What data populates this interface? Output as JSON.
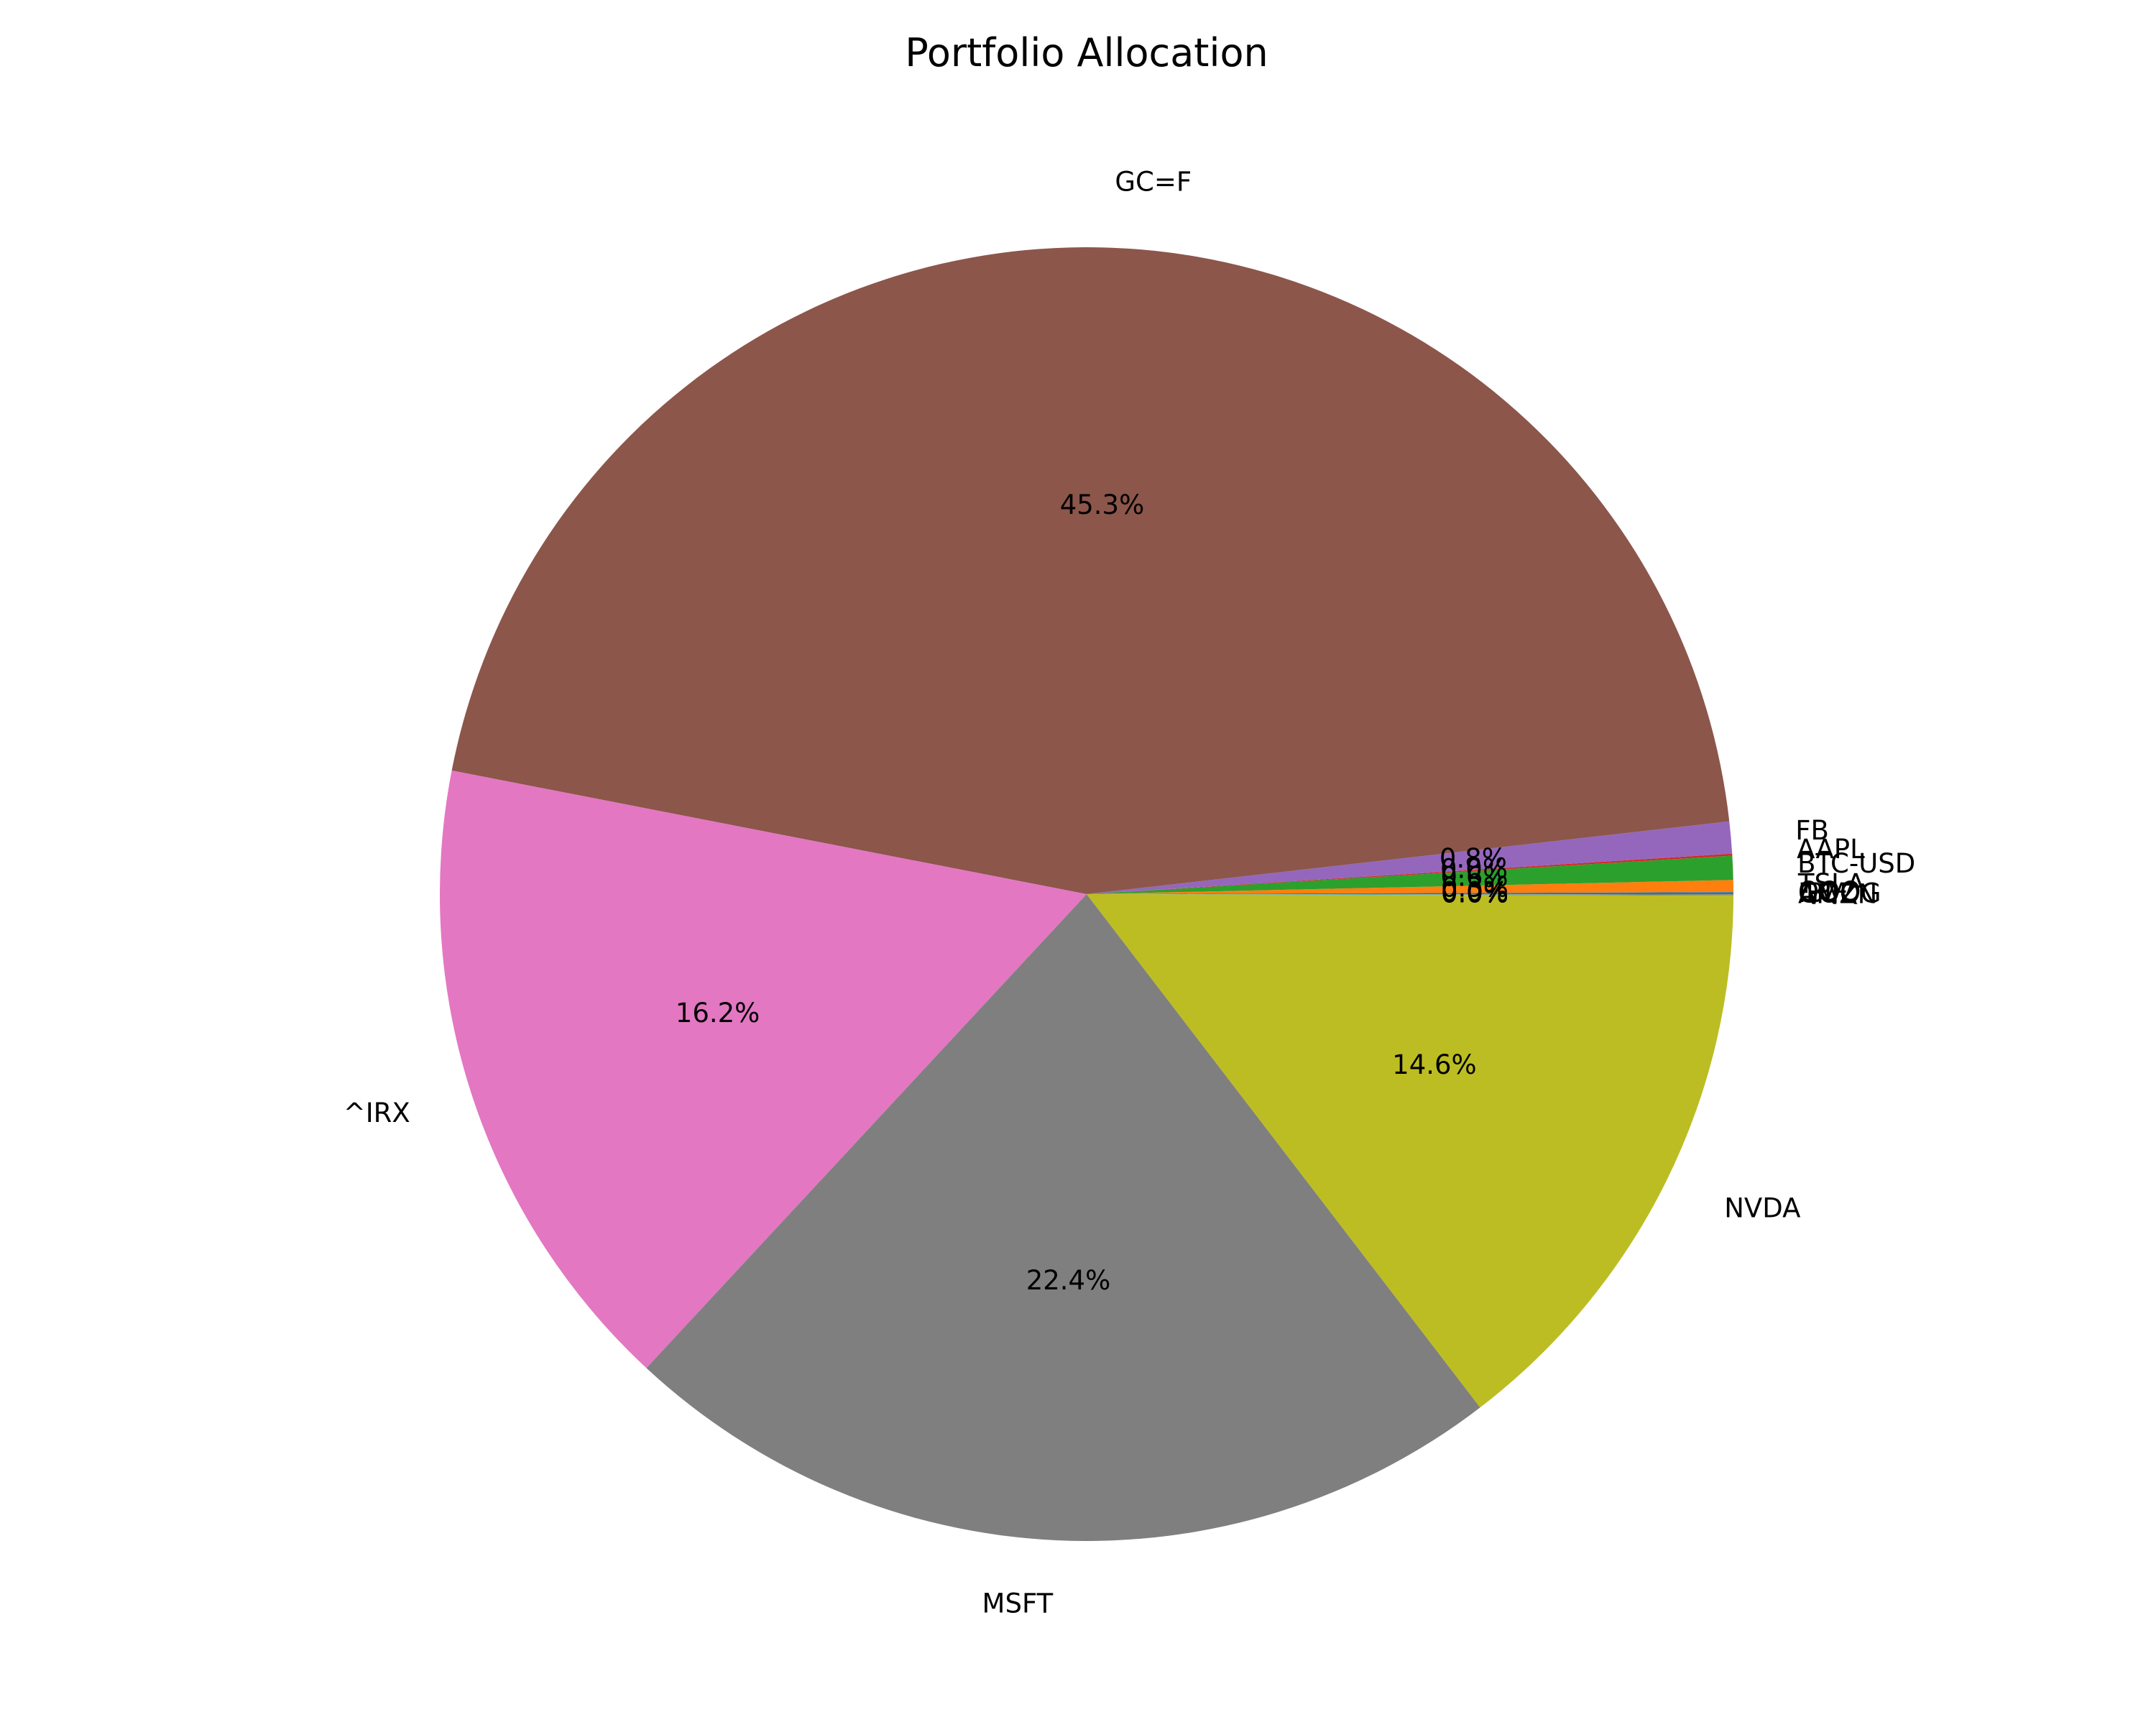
{
  "chart_data": {
    "type": "pie",
    "title": "Portfolio Allocation",
    "start_angle_deg": 0,
    "direction": "counterclockwise",
    "slices": [
      {
        "label": "QQQ",
        "value": 0.05,
        "pct_text": "0.0%",
        "color": "#1f77b4"
      },
      {
        "label": "TSLA",
        "value": 0.3,
        "pct_text": "0.3%",
        "color": "#ff7f0e"
      },
      {
        "label": "BTC-USD",
        "value": 0.6,
        "pct_text": "0.6%",
        "color": "#2ca02c"
      },
      {
        "label": "AAPL",
        "value": 0.05,
        "pct_text": "0.0%",
        "color": "#d62728"
      },
      {
        "label": "FB",
        "value": 0.8,
        "pct_text": "0.8%",
        "color": "#9467bd"
      },
      {
        "label": "GC=F",
        "value": 45.3,
        "pct_text": "45.3%",
        "color": "#8c564b"
      },
      {
        "label": "^IRX",
        "value": 16.2,
        "pct_text": "16.2%",
        "color": "#e377c2"
      },
      {
        "label": "MSFT",
        "value": 22.4,
        "pct_text": "22.4%",
        "color": "#7f7f7f"
      },
      {
        "label": "NVDA",
        "value": 14.6,
        "pct_text": "14.6%",
        "color": "#bcbd22"
      },
      {
        "label": "AMZN",
        "value": 0.02,
        "pct_text": "0.0%",
        "color": "#17becf"
      },
      {
        "label": "GOOG",
        "value": 0.01,
        "pct_text": "0.0%",
        "color": "#1f77b4"
      },
      {
        "label": "IBM",
        "value": 0.01,
        "pct_text": "0.0%",
        "color": "#ff7f0e"
      }
    ]
  }
}
